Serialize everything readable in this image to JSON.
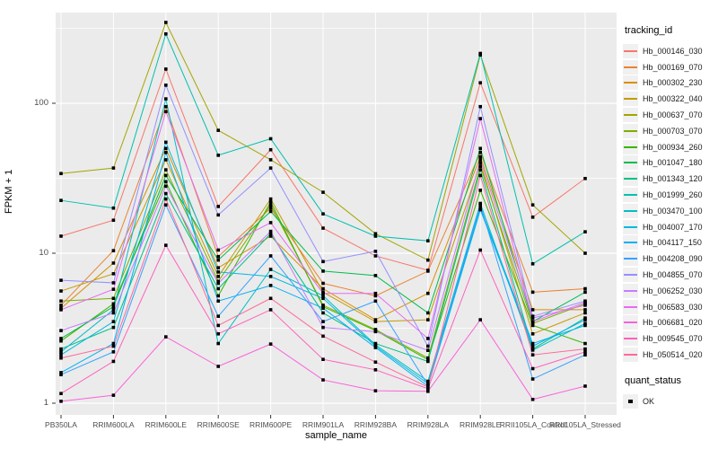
{
  "figure": {
    "background": "#FFFFFF",
    "panel_bg": "#EBEBEB",
    "grid_color": "#FFFFFF",
    "tick_color": "#333333",
    "tick_label_color": "#4D4D4D"
  },
  "chart_data": {
    "type": "line",
    "title": "",
    "xlabel": "sample_name",
    "ylabel": "FPKM + 1",
    "y_scale": "log10",
    "y_ticks": [
      1,
      10,
      100
    ],
    "y_minor_ticks": [
      3.1623,
      31.623,
      316.23
    ],
    "ylim": [
      1,
      400
    ],
    "legend_position": "right",
    "grid": true,
    "point_shape": "square",
    "point_color": "#000000",
    "categories": [
      "PB350LA",
      "RRIM600LA",
      "RRIM600LE",
      "RRIM600SE",
      "RRIM600PE",
      "RRIM901LA",
      "RRIM928BA",
      "RRIM928LA",
      "RRIM928LE",
      "RRII105LA_Control",
      "RRII105LA_Stressed"
    ],
    "series": [
      {
        "name": "Hb_000146_030",
        "color": "#F8766D",
        "values": [
          13,
          16.6,
          169,
          20.5,
          49,
          14.7,
          9.6,
          7.7,
          137,
          17.4,
          31.5
        ]
      },
      {
        "name": "Hb_000169_070",
        "color": "#EA8331",
        "values": [
          4.5,
          10.4,
          95,
          9.5,
          20,
          6.3,
          5.2,
          7.6,
          47,
          5.5,
          5.8
        ]
      },
      {
        "name": "Hb_000302_230",
        "color": "#D89000",
        "values": [
          4.3,
          8.6,
          50,
          8.0,
          13,
          5.8,
          3.6,
          5.4,
          44,
          4.2,
          4.2
        ]
      },
      {
        "name": "Hb_000322_040",
        "color": "#C49A00",
        "values": [
          5.6,
          7.3,
          42,
          7.0,
          23,
          5.5,
          3.5,
          3.6,
          40,
          2.9,
          4.0
        ]
      },
      {
        "name": "Hb_000637_070",
        "color": "#A3A500",
        "values": [
          34,
          37,
          346,
          66,
          42,
          25.5,
          13.5,
          9.0,
          210,
          21,
          10
        ]
      },
      {
        "name": "Hb_000703_070",
        "color": "#7CAE00",
        "values": [
          4.8,
          5.0,
          36,
          6.5,
          21,
          4.5,
          3.1,
          2.0,
          38,
          3.4,
          4.6
        ]
      },
      {
        "name": "Hb_000934_260",
        "color": "#39B600",
        "values": [
          2.6,
          4.6,
          30,
          5.2,
          22,
          4.4,
          3.05,
          1.95,
          26.3,
          3.3,
          2.5
        ]
      },
      {
        "name": "Hb_001047_180",
        "color": "#00BB4E",
        "values": [
          2.7,
          4.4,
          33,
          9.0,
          19,
          7.6,
          7.1,
          4.0,
          50,
          3.5,
          5.5
        ]
      },
      {
        "name": "Hb_001343_120",
        "color": "#00C087",
        "values": [
          2.3,
          3.2,
          25,
          5.8,
          13.5,
          4.0,
          2.5,
          1.9,
          36,
          2.3,
          3.7
        ]
      },
      {
        "name": "Hb_001999_260",
        "color": "#00C0AF",
        "values": [
          22.5,
          20,
          290,
          45,
          58,
          18.3,
          13.0,
          12.1,
          215,
          8.5,
          13.9
        ]
      },
      {
        "name": "Hb_003470_100",
        "color": "#00BFC4",
        "values": [
          2.2,
          4.2,
          107,
          2.5,
          7.8,
          5.2,
          2.45,
          1.4,
          21.5,
          2.26,
          3.4
        ]
      },
      {
        "name": "Hb_004007_170",
        "color": "#00BAE0",
        "values": [
          2.1,
          3.5,
          55,
          7.5,
          7.0,
          5.0,
          2.4,
          1.35,
          20,
          2.5,
          3.3
        ]
      },
      {
        "name": "Hb_004117_150",
        "color": "#00B0F6",
        "values": [
          1.6,
          2.5,
          47,
          4.8,
          6.1,
          4.3,
          2.35,
          1.3,
          19.5,
          2.4,
          3.6
        ]
      },
      {
        "name": "Hb_004208_090",
        "color": "#35A2FF",
        "values": [
          1.55,
          2.2,
          21,
          3.8,
          9.6,
          3.5,
          4.8,
          1.32,
          21,
          1.45,
          2.1
        ]
      },
      {
        "name": "Hb_004855_070",
        "color": "#9590FF",
        "values": [
          6.6,
          6.35,
          132,
          18,
          37,
          8.8,
          10.3,
          2.4,
          95,
          3.8,
          4.8
        ]
      },
      {
        "name": "Hb_006252_030",
        "color": "#C77CFF",
        "values": [
          3.05,
          4.0,
          28,
          6.3,
          14,
          3.2,
          3.0,
          2.25,
          42,
          3.7,
          4.5
        ]
      },
      {
        "name": "Hb_006583_030",
        "color": "#E76BF3",
        "values": [
          4.2,
          5.75,
          88,
          10.5,
          16,
          5.4,
          5.4,
          2.7,
          79,
          3.5,
          4.7
        ]
      },
      {
        "name": "Hb_006681_020",
        "color": "#FA62DB",
        "values": [
          1.03,
          1.13,
          2.77,
          1.76,
          2.48,
          1.43,
          1.21,
          1.2,
          3.6,
          1.06,
          1.3
        ]
      },
      {
        "name": "Hb_009545_070",
        "color": "#FF62BC",
        "values": [
          1.16,
          1.9,
          11.3,
          2.9,
          4.2,
          1.96,
          1.67,
          1.25,
          10.5,
          1.7,
          2.2
        ]
      },
      {
        "name": "Hb_050514_020",
        "color": "#FF6A98",
        "values": [
          2.0,
          2.4,
          23,
          3.3,
          5.0,
          2.8,
          1.88,
          1.28,
          33,
          2.1,
          2.3
        ]
      }
    ]
  },
  "legend": {
    "tracking_title": "tracking_id",
    "quant_title": "quant_status",
    "quant_items": [
      {
        "label": "OK",
        "shape": "black-square"
      }
    ]
  }
}
